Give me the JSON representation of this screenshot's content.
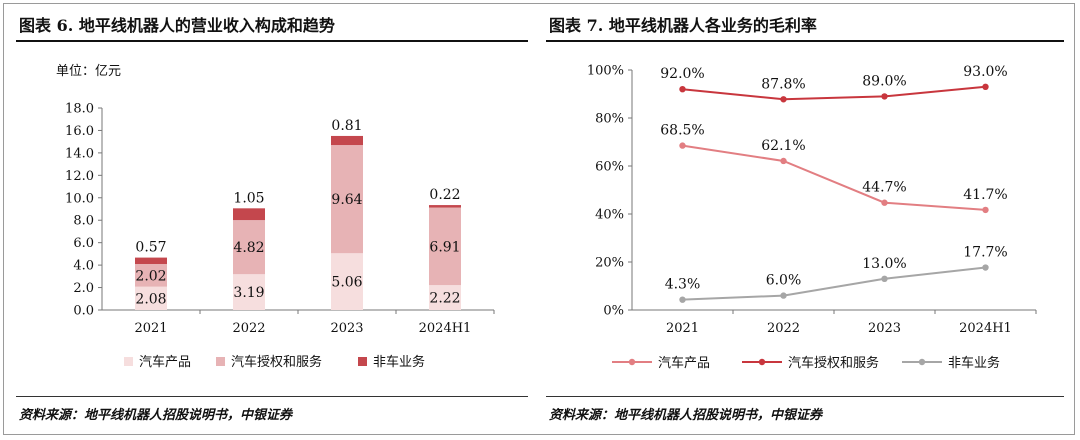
{
  "left_panel": {
    "title": "图表 6. 地平线机器人的营业收入构成和趋势",
    "unit_label": "单位：亿元",
    "source": "资料来源：地平线机器人招股说明书，中银证券"
  },
  "right_panel": {
    "title": "图表 7. 地平线机器人各业务的毛利率",
    "source": "资料来源：地平线机器人招股说明书，中银证券"
  },
  "colors": {
    "auto_products": "#f6dede",
    "auto_licensing": "#e7b3b5",
    "non_auto": "#c4474d",
    "line_products": "#e27e82",
    "line_licensing": "#c8363d",
    "line_non_auto": "#a6a6a6"
  },
  "chart_data": [
    {
      "type": "bar",
      "stacked": true,
      "categories": [
        "2021",
        "2022",
        "2023",
        "2024H1"
      ],
      "series": [
        {
          "name": "汽车产品",
          "values": [
            2.08,
            3.19,
            5.06,
            2.22
          ],
          "labels": [
            "2.08",
            "3.19",
            "5.06",
            "2.22"
          ]
        },
        {
          "name": "汽车授权和服务",
          "values": [
            2.02,
            4.82,
            9.64,
            6.91
          ],
          "labels": [
            "2.02",
            "4.82",
            "9.64",
            "6.91"
          ]
        },
        {
          "name": "非车业务",
          "values": [
            0.57,
            1.05,
            0.81,
            0.22
          ],
          "labels": [
            "0.57",
            "1.05",
            "0.81",
            "0.22"
          ]
        }
      ],
      "ylim": [
        0,
        18
      ],
      "yticks": [
        0,
        2,
        4,
        6,
        8,
        10,
        12,
        14,
        16,
        18
      ],
      "ytick_labels": [
        "0.0",
        "2.0",
        "4.0",
        "6.0",
        "8.0",
        "10.0",
        "12.0",
        "14.0",
        "16.0",
        "18.0"
      ],
      "grid": false,
      "legend_position": "bottom"
    },
    {
      "type": "line",
      "categories": [
        "2021",
        "2022",
        "2023",
        "2024H1"
      ],
      "series": [
        {
          "name": "汽车产品",
          "values": [
            68.5,
            62.1,
            44.7,
            41.7
          ],
          "labels": [
            "68.5%",
            "62.1%",
            "44.7%",
            "41.7%"
          ]
        },
        {
          "name": "汽车授权和服务",
          "values": [
            92.0,
            87.8,
            89.0,
            93.0
          ],
          "labels": [
            "92.0%",
            "87.8%",
            "89.0%",
            "93.0%"
          ]
        },
        {
          "name": "非车业务",
          "values": [
            4.3,
            6.0,
            13.0,
            17.7
          ],
          "labels": [
            "4.3%",
            "6.0%",
            "13.0%",
            "17.7%"
          ]
        }
      ],
      "ylim": [
        0,
        100
      ],
      "yticks": [
        0,
        20,
        40,
        60,
        80,
        100
      ],
      "ytick_labels": [
        "0%",
        "20%",
        "40%",
        "60%",
        "80%",
        "100%"
      ],
      "grid": false,
      "legend_position": "bottom"
    }
  ]
}
